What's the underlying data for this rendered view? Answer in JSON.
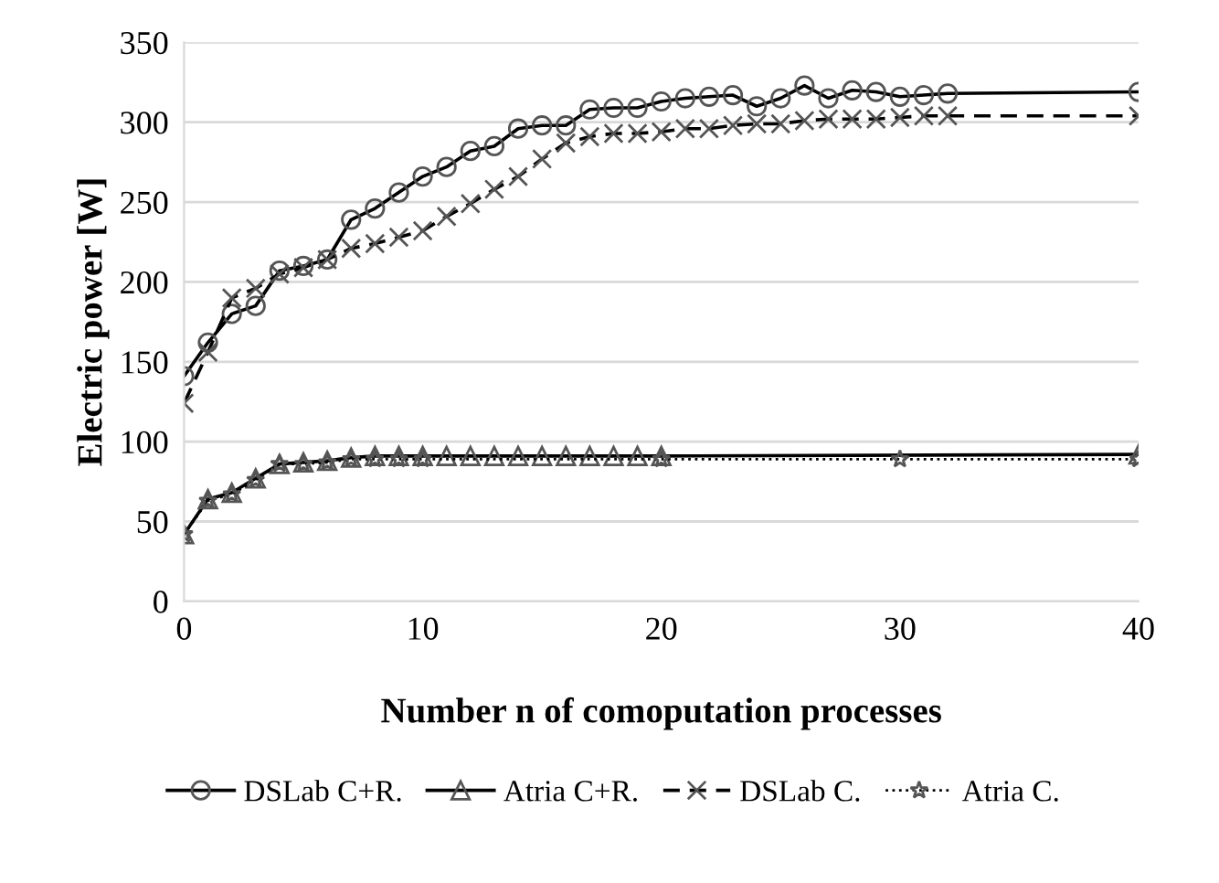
{
  "chart_data": {
    "type": "line",
    "xlabel": "Number n of comoputation processes",
    "ylabel": "Electric power [W]",
    "xlim": [
      0,
      40
    ],
    "xticks": [
      0,
      10,
      20,
      30,
      40
    ],
    "ylim": [
      0,
      350
    ],
    "yticks": [
      0,
      50,
      100,
      150,
      200,
      250,
      300,
      350
    ],
    "grid": "y",
    "legend": "bottom",
    "series": [
      {
        "name": "DSLab C+R.",
        "color": "#000000",
        "marker": "circle",
        "line_style": "solid",
        "x": [
          0,
          1,
          2,
          3,
          4,
          5,
          6,
          7,
          8,
          9,
          10,
          11,
          12,
          13,
          14,
          15,
          16,
          17,
          18,
          19,
          20,
          21,
          22,
          23,
          24,
          25,
          26,
          27,
          28,
          29,
          30,
          31,
          32,
          40
        ],
        "values": [
          141,
          162,
          180,
          185,
          207,
          210,
          214,
          239,
          246,
          256,
          266,
          272,
          282,
          285,
          296,
          298,
          298,
          308,
          309,
          309,
          313,
          315,
          316,
          317,
          310,
          315,
          323,
          315,
          320,
          319,
          316,
          317,
          318,
          319
        ]
      },
      {
        "name": "Atria C+R.",
        "color": "#000000",
        "marker": "triangle",
        "line_style": "solid",
        "x": [
          0,
          1,
          2,
          3,
          4,
          5,
          6,
          7,
          8,
          9,
          10,
          11,
          12,
          13,
          14,
          15,
          16,
          17,
          18,
          19,
          20,
          40
        ],
        "values": [
          42,
          64,
          68,
          77,
          86,
          87,
          88,
          90,
          91,
          91,
          91,
          91,
          91,
          91,
          91,
          91,
          91,
          91,
          91,
          91,
          91,
          92
        ]
      },
      {
        "name": "DSLab C.",
        "color": "#000000",
        "marker": "cross",
        "line_style": "dashed",
        "x": [
          0,
          1,
          2,
          3,
          4,
          5,
          6,
          7,
          8,
          9,
          10,
          11,
          12,
          13,
          14,
          15,
          16,
          17,
          18,
          19,
          20,
          21,
          22,
          23,
          24,
          25,
          26,
          27,
          28,
          29,
          30,
          31,
          32,
          40
        ],
        "values": [
          124,
          156,
          190,
          196,
          205,
          209,
          214,
          221,
          224,
          228,
          232,
          241,
          249,
          258,
          266,
          277,
          287,
          291,
          293,
          293,
          294,
          296,
          296,
          298,
          299,
          299,
          301,
          302,
          302,
          302,
          303,
          304,
          304,
          304
        ]
      },
      {
        "name": "Atria C.",
        "color": "#000000",
        "marker": "star",
        "line_style": "dotted",
        "x": [
          0,
          1,
          2,
          3,
          4,
          5,
          6,
          7,
          8,
          9,
          10,
          20,
          30,
          40
        ],
        "values": [
          42,
          63,
          67,
          76,
          86,
          86,
          87,
          89,
          89,
          89,
          89,
          89,
          89,
          89
        ]
      }
    ]
  }
}
